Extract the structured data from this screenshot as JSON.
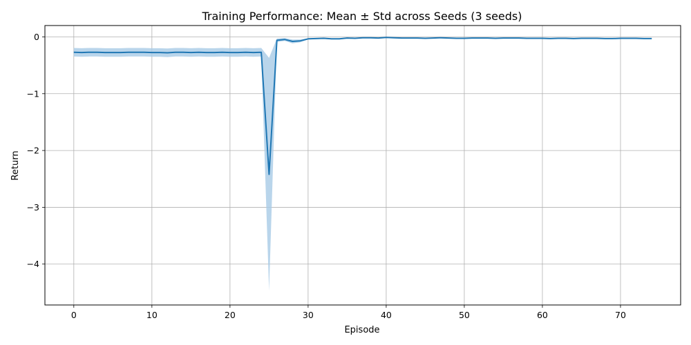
{
  "chart_data": {
    "type": "line",
    "title": "Training Performance: Mean ± Std across Seeds (3 seeds)",
    "xlabel": "Episode",
    "ylabel": "Return",
    "xlim": [
      -3.7,
      77.7
    ],
    "ylim": [
      -4.72,
      0.2
    ],
    "xticks": [
      0,
      10,
      20,
      30,
      40,
      50,
      60,
      70
    ],
    "yticks": [
      0,
      -1,
      -2,
      -3,
      -4
    ],
    "xtick_labels": [
      "0",
      "10",
      "20",
      "30",
      "40",
      "50",
      "60",
      "70"
    ],
    "ytick_labels": [
      "0",
      "−1",
      "−2",
      "−3",
      "−4"
    ],
    "grid": true,
    "legend": "none",
    "colors": {
      "line": "#1f77b4",
      "band": "#a8cbe6",
      "grid": "#b0b0b0"
    },
    "series": [
      {
        "x": [
          0,
          1,
          2,
          3,
          4,
          5,
          6,
          7,
          8,
          9,
          10,
          11,
          12,
          13,
          14,
          15,
          16,
          17,
          18,
          19,
          20,
          21,
          22,
          23,
          24,
          25,
          26,
          27,
          28,
          29,
          30,
          31,
          32,
          33,
          34,
          35,
          36,
          37,
          38,
          39,
          40,
          41,
          42,
          43,
          44,
          45,
          46,
          47,
          48,
          49,
          50,
          51,
          52,
          53,
          54,
          55,
          56,
          57,
          58,
          59,
          60,
          61,
          62,
          63,
          64,
          65,
          66,
          67,
          68,
          69,
          70,
          71,
          72,
          73,
          74
        ],
        "mean": [
          -0.27,
          -0.275,
          -0.27,
          -0.27,
          -0.275,
          -0.275,
          -0.275,
          -0.27,
          -0.27,
          -0.27,
          -0.275,
          -0.275,
          -0.28,
          -0.27,
          -0.27,
          -0.275,
          -0.27,
          -0.275,
          -0.275,
          -0.27,
          -0.275,
          -0.275,
          -0.27,
          -0.275,
          -0.27,
          -2.42,
          -0.06,
          -0.045,
          -0.08,
          -0.07,
          -0.035,
          -0.03,
          -0.025,
          -0.035,
          -0.035,
          -0.02,
          -0.025,
          -0.015,
          -0.015,
          -0.02,
          -0.01,
          -0.015,
          -0.02,
          -0.02,
          -0.02,
          -0.025,
          -0.02,
          -0.015,
          -0.02,
          -0.025,
          -0.025,
          -0.02,
          -0.02,
          -0.02,
          -0.025,
          -0.02,
          -0.02,
          -0.02,
          -0.025,
          -0.025,
          -0.025,
          -0.03,
          -0.025,
          -0.025,
          -0.03,
          -0.025,
          -0.025,
          -0.025,
          -0.03,
          -0.03,
          -0.025,
          -0.025,
          -0.025,
          -0.03,
          -0.03
        ],
        "std": [
          0.075,
          0.075,
          0.075,
          0.075,
          0.075,
          0.075,
          0.075,
          0.075,
          0.075,
          0.075,
          0.075,
          0.075,
          0.075,
          0.075,
          0.075,
          0.075,
          0.075,
          0.075,
          0.075,
          0.075,
          0.075,
          0.075,
          0.075,
          0.075,
          0.075,
          2.05,
          0.03,
          0.025,
          0.035,
          0.025,
          0.01,
          0.01,
          0.01,
          0.01,
          0.01,
          0.01,
          0.01,
          0.005,
          0.005,
          0.005,
          0.005,
          0.005,
          0.005,
          0.005,
          0.005,
          0.005,
          0.005,
          0.005,
          0.005,
          0.005,
          0.005,
          0.005,
          0.005,
          0.005,
          0.005,
          0.005,
          0.005,
          0.005,
          0.005,
          0.005,
          0.005,
          0.005,
          0.005,
          0.005,
          0.005,
          0.005,
          0.005,
          0.005,
          0.005,
          0.005,
          0.005,
          0.005,
          0.005,
          0.005,
          0.005
        ]
      }
    ]
  }
}
